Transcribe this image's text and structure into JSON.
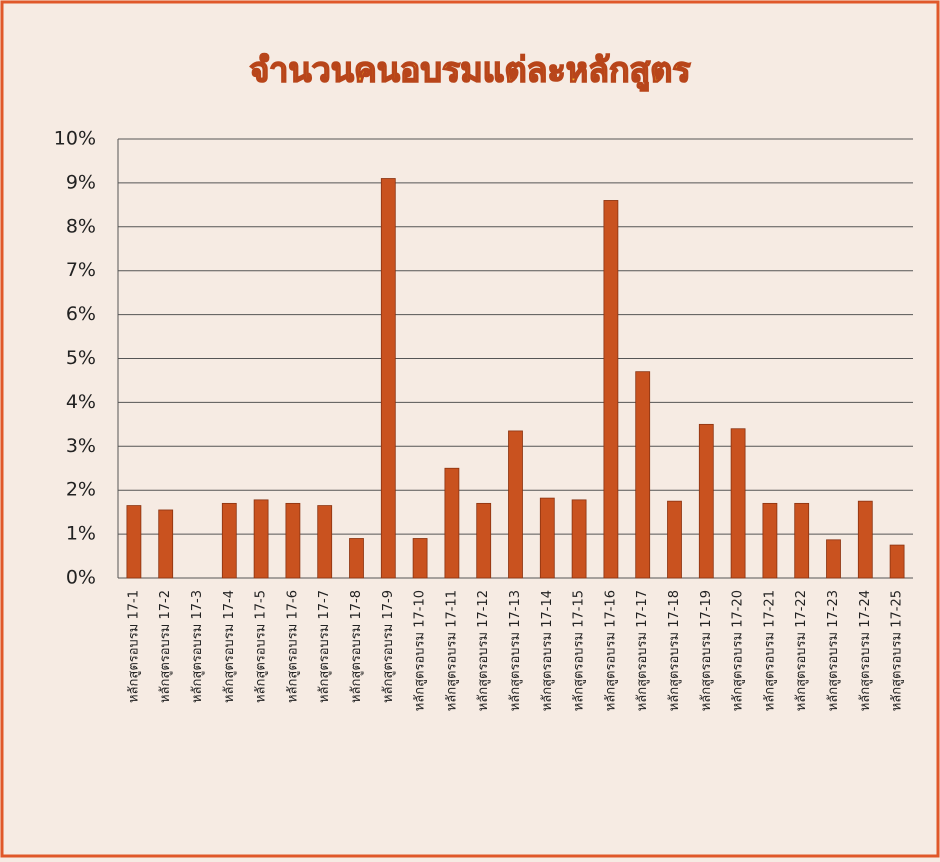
{
  "chart_data": {
    "type": "bar",
    "title": "จำนวนคนอบรมแต่ละหลักสูตร",
    "categories": [
      "หลักสูตรอบรม 17-1",
      "หลักสูตรอบรม 17-2",
      "หลักสูตรอบรม 17-3",
      "หลักสูตรอบรม 17-4",
      "หลักสูตรอบรม 17-5",
      "หลักสูตรอบรม 17-6",
      "หลักสูตรอบรม 17-7",
      "หลักสูตรอบรม 17-8",
      "หลักสูตรอบรม 17-9",
      "หลักสูตรอบรม 17-10",
      "หลักสูตรอบรม 17-11",
      "หลักสูตรอบรม 17-12",
      "หลักสูตรอบรม 17-13",
      "หลักสูตรอบรม 17-14",
      "หลักสูตรอบรม 17-15",
      "หลักสูตรอบรม 17-16",
      "หลักสูตรอบรม 17-17",
      "หลักสูตรอบรม 17-18",
      "หลักสูตรอบรม 17-19",
      "หลักสูตรอบรม 17-20",
      "หลักสูตรอบรม 17-21",
      "หลักสูตรอบรม 17-22",
      "หลักสูตรอบรม 17-23",
      "หลักสูตรอบรม 17-24",
      "หลักสูตรอบรม 17-25"
    ],
    "values": [
      1.65,
      1.55,
      0,
      1.7,
      1.78,
      1.7,
      1.65,
      0.9,
      9.1,
      0.9,
      2.5,
      1.7,
      3.35,
      1.82,
      1.78,
      8.6,
      4.7,
      1.75,
      3.5,
      3.4,
      1.7,
      1.7,
      0.87,
      1.75,
      0.75
    ],
    "color": "#c9521f",
    "ylim": [
      0,
      10
    ],
    "yticks": [
      {
        "value": 0,
        "label": "0%"
      },
      {
        "value": 1,
        "label": "1%"
      },
      {
        "value": 2,
        "label": "2%"
      },
      {
        "value": 3,
        "label": "3%"
      },
      {
        "value": 4,
        "label": "4%"
      },
      {
        "value": 5,
        "label": "5%"
      },
      {
        "value": 6,
        "label": "6%"
      },
      {
        "value": 7,
        "label": "7%"
      },
      {
        "value": 8,
        "label": "8%"
      },
      {
        "value": 9,
        "label": "9%"
      },
      {
        "value": 10,
        "label": "10%"
      }
    ],
    "grid": true
  }
}
